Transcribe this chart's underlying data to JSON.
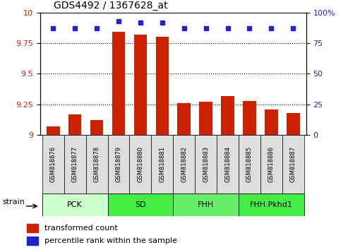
{
  "title": "GDS4492 / 1367628_at",
  "samples": [
    "GSM818876",
    "GSM818877",
    "GSM818878",
    "GSM818879",
    "GSM818880",
    "GSM818881",
    "GSM818882",
    "GSM818883",
    "GSM818884",
    "GSM818885",
    "GSM818886",
    "GSM818887"
  ],
  "red_values": [
    9.07,
    9.17,
    9.12,
    9.84,
    9.82,
    9.8,
    9.26,
    9.27,
    9.32,
    9.28,
    9.21,
    9.18
  ],
  "blue_values": [
    87,
    87,
    87,
    93,
    92,
    92,
    87,
    87,
    87,
    87,
    87,
    87
  ],
  "ylim": [
    9.0,
    10.0
  ],
  "y2lim": [
    0,
    100
  ],
  "yticks": [
    9.0,
    9.25,
    9.5,
    9.75,
    10.0
  ],
  "ytick_labels": [
    "9",
    "9.25",
    "9.5",
    "9.75",
    "10"
  ],
  "y2ticks": [
    0,
    25,
    50,
    75,
    100
  ],
  "y2tick_labels": [
    "0",
    "25",
    "50",
    "75",
    "100%"
  ],
  "groups": [
    {
      "label": "PCK",
      "start": 0,
      "end": 3,
      "color": "#ccffcc"
    },
    {
      "label": "SD",
      "start": 3,
      "end": 6,
      "color": "#44ee44"
    },
    {
      "label": "FHH",
      "start": 6,
      "end": 9,
      "color": "#66ee66"
    },
    {
      "label": "FHH.Pkhd1",
      "start": 9,
      "end": 12,
      "color": "#44ee44"
    }
  ],
  "red_color": "#cc2200",
  "blue_color": "#2222cc",
  "bar_width": 0.6,
  "tick_label_color_left": "#cc2200",
  "tick_label_color_right": "#2222cc",
  "strain_label": "strain",
  "legend_red": "transformed count",
  "legend_blue": "percentile rank within the sample",
  "sample_box_color": "#dddddd",
  "title_fontsize": 10,
  "axis_fontsize": 8,
  "legend_fontsize": 8,
  "group_fontsize": 8,
  "strain_fontsize": 8,
  "sample_fontsize": 6
}
